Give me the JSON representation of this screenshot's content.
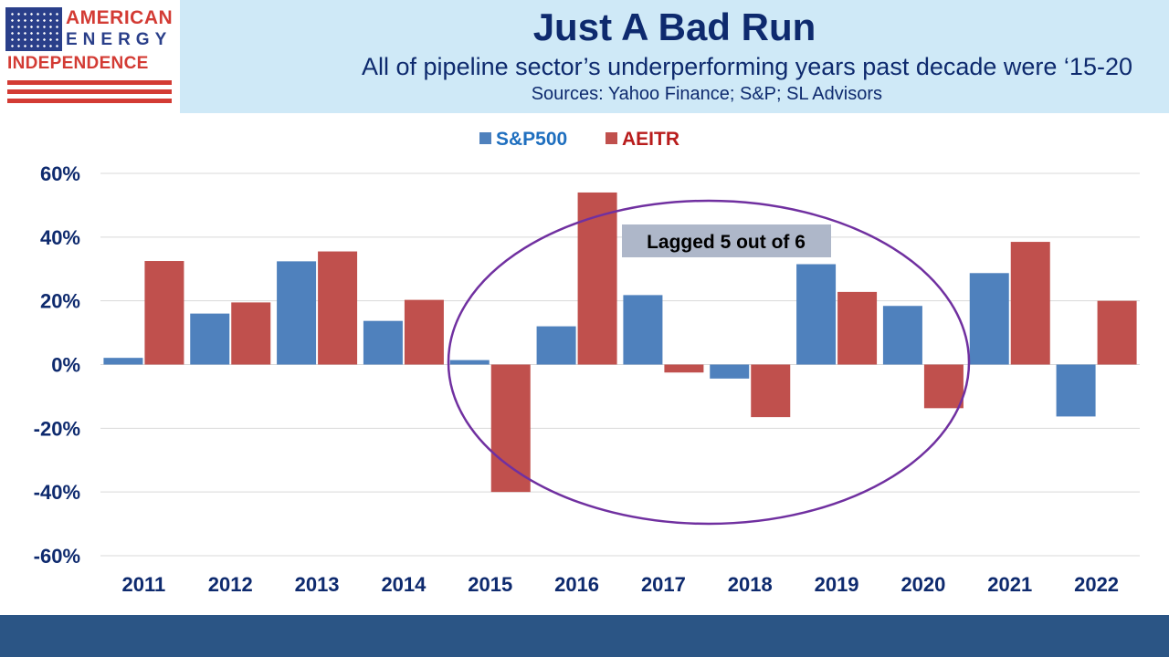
{
  "header": {
    "logo": {
      "line1": "AMERICAN",
      "line2": "ENERGY",
      "line3": "INDEPENDENCE"
    },
    "title": "Just A Bad Run",
    "subtitle": "All of pipeline sector’s underperforming years past decade were ‘15-20",
    "sources": "Sources: Yahoo Finance; S&P; SL Advisors"
  },
  "chart_data": {
    "type": "bar",
    "categories": [
      "2011",
      "2012",
      "2013",
      "2014",
      "2015",
      "2016",
      "2017",
      "2018",
      "2019",
      "2020",
      "2021",
      "2022"
    ],
    "series": [
      {
        "name": "S&P500",
        "color": "#4f81bd",
        "values": [
          2.1,
          16.0,
          32.4,
          13.7,
          1.4,
          12.0,
          21.8,
          -4.4,
          31.5,
          18.4,
          28.7,
          -16.3
        ]
      },
      {
        "name": "AEITR",
        "color": "#c0504d",
        "values": [
          32.5,
          19.5,
          35.5,
          20.3,
          -40.0,
          54.0,
          -2.5,
          -16.5,
          22.8,
          -13.7,
          38.5,
          20.0
        ]
      }
    ],
    "ylim": [
      -60,
      60
    ],
    "yticks": [
      60,
      40,
      20,
      0,
      -20,
      -40,
      -60
    ],
    "ytick_labels": [
      "60%",
      "40%",
      "20%",
      "0%",
      "-20%",
      "-40%",
      "-60%"
    ],
    "grid": true,
    "legend_position": "top-center",
    "legend_colors": {
      "S&P500": "#1f6fbf",
      "AEITR": "#b81c1c"
    },
    "annotation": {
      "text": "Lagged 5 out of 6",
      "highlight": [
        "2015",
        "2016",
        "2017",
        "2018",
        "2019",
        "2020"
      ]
    }
  }
}
